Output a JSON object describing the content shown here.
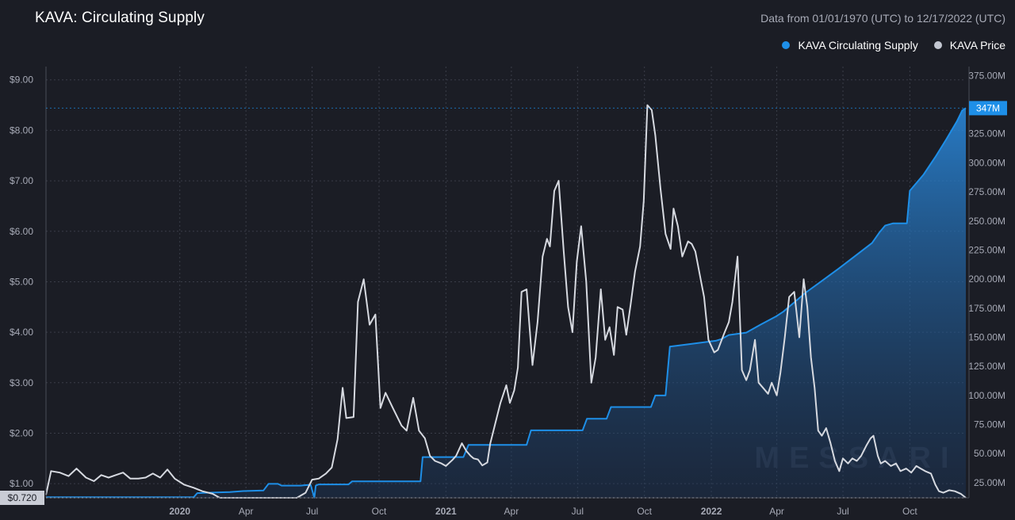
{
  "header": {
    "title": "KAVA: Circulating Supply",
    "date_range": "Data from 01/01/1970 (UTC) to 12/17/2022 (UTC)"
  },
  "legend": {
    "items": [
      {
        "label": "KAVA Circulating Supply",
        "color": "#1e8fe8"
      },
      {
        "label": "KAVA Price",
        "color": "#c3c7d1"
      }
    ]
  },
  "watermark": "MESSARI",
  "colors": {
    "background": "#1b1d25",
    "supply": "#1e8fe8",
    "price": "#d6d9e0",
    "grid": "#3a3d48",
    "axis_text": "#a7aab6"
  },
  "chart_data": {
    "type": "line",
    "title": "KAVA: Circulating Supply",
    "x_range": [
      "2019-07-01",
      "2022-12-17"
    ],
    "x_ticks": [
      {
        "label": "2020",
        "date": "2020-01-01"
      },
      {
        "label": "Apr",
        "date": "2020-04-01"
      },
      {
        "label": "Jul",
        "date": "2020-07-01"
      },
      {
        "label": "Oct",
        "date": "2020-10-01"
      },
      {
        "label": "2021",
        "date": "2021-01-01"
      },
      {
        "label": "Apr",
        "date": "2021-04-01"
      },
      {
        "label": "Jul",
        "date": "2021-07-01"
      },
      {
        "label": "Oct",
        "date": "2021-10-01"
      },
      {
        "label": "2022",
        "date": "2022-01-01"
      },
      {
        "label": "Apr",
        "date": "2022-04-01"
      },
      {
        "label": "Jul",
        "date": "2022-07-01"
      },
      {
        "label": "Oct",
        "date": "2022-10-01"
      }
    ],
    "left_axis": {
      "ylim": [
        0.72,
        9.2
      ],
      "ticks": [
        1,
        2,
        3,
        4,
        5,
        6,
        7,
        8,
        9
      ],
      "tick_labels": [
        "$1.00",
        "$2.00",
        "$3.00",
        "$4.00",
        "$5.00",
        "$6.00",
        "$7.00",
        "$8.00",
        "$9.00"
      ]
    },
    "right_axis": {
      "ylim": [
        12,
        380
      ],
      "ticks": [
        25,
        50,
        75,
        100,
        125,
        150,
        175,
        200,
        225,
        250,
        275,
        300,
        325,
        350,
        375
      ],
      "tick_labels": [
        "25.00M",
        "50.00M",
        "75.00M",
        "100.00M",
        "125.00M",
        "150.00M",
        "175.00M",
        "200.00M",
        "225.00M",
        "250.00M",
        "275.00M",
        "300.00M",
        "325.00M",
        "",
        "375.00M"
      ]
    },
    "last_values": {
      "price": "$0.720",
      "supply": "347M"
    },
    "grid": true,
    "legend_position": "top-right",
    "series": [
      {
        "name": "KAVA Circulating Supply",
        "axis": "right",
        "type": "area",
        "points": [
          [
            "2019-07-01",
            12.5
          ],
          [
            "2019-09-01",
            12.5
          ],
          [
            "2019-11-01",
            12.5
          ],
          [
            "2020-01-07",
            12.5
          ],
          [
            "2020-01-20",
            12.5
          ],
          [
            "2020-01-25",
            16
          ],
          [
            "2020-02-15",
            16.5
          ],
          [
            "2020-03-10",
            17
          ],
          [
            "2020-03-28",
            17.8
          ],
          [
            "2020-04-25",
            18.3
          ],
          [
            "2020-05-02",
            24
          ],
          [
            "2020-05-15",
            24
          ],
          [
            "2020-05-20",
            22.5
          ],
          [
            "2020-06-15",
            22.5
          ],
          [
            "2020-06-24",
            23
          ],
          [
            "2020-06-29",
            23
          ],
          [
            "2020-07-04",
            0
          ],
          [
            "2020-07-06",
            22.5
          ],
          [
            "2020-07-10",
            23.5
          ],
          [
            "2020-08-20",
            23.5
          ],
          [
            "2020-08-25",
            26.2
          ],
          [
            "2020-10-10",
            26.2
          ],
          [
            "2020-11-27",
            26.2
          ],
          [
            "2020-11-30",
            47
          ],
          [
            "2021-01-25",
            47
          ],
          [
            "2021-02-01",
            57.5
          ],
          [
            "2021-04-22",
            57.5
          ],
          [
            "2021-04-28",
            70
          ],
          [
            "2021-07-08",
            70
          ],
          [
            "2021-07-14",
            80
          ],
          [
            "2021-08-10",
            80
          ],
          [
            "2021-08-16",
            90
          ],
          [
            "2021-10-10",
            90
          ],
          [
            "2021-10-16",
            100
          ],
          [
            "2021-10-30",
            100
          ],
          [
            "2021-11-05",
            142
          ],
          [
            "2021-12-01",
            144
          ],
          [
            "2022-01-07",
            147
          ],
          [
            "2022-01-15",
            148.5
          ],
          [
            "2022-01-25",
            152
          ],
          [
            "2022-02-18",
            154
          ],
          [
            "2022-03-10",
            161
          ],
          [
            "2022-03-31",
            168
          ],
          [
            "2022-04-10",
            172
          ],
          [
            "2022-04-25",
            180
          ],
          [
            "2022-05-10",
            188
          ],
          [
            "2022-06-01",
            198
          ],
          [
            "2022-06-25",
            209
          ],
          [
            "2022-07-20",
            221
          ],
          [
            "2022-08-10",
            231
          ],
          [
            "2022-08-20",
            240
          ],
          [
            "2022-08-28",
            246
          ],
          [
            "2022-09-08",
            248
          ],
          [
            "2022-09-27",
            248
          ],
          [
            "2022-10-01",
            276
          ],
          [
            "2022-10-20",
            290
          ],
          [
            "2022-11-05",
            305
          ],
          [
            "2022-11-20",
            320
          ],
          [
            "2022-12-05",
            336
          ],
          [
            "2022-12-12",
            345
          ],
          [
            "2022-12-17",
            347
          ]
        ]
      },
      {
        "name": "KAVA Price",
        "axis": "left",
        "type": "line",
        "points": [
          [
            "2019-07-01",
            0.78
          ],
          [
            "2019-07-08",
            1.25
          ],
          [
            "2019-07-20",
            1.22
          ],
          [
            "2019-08-01",
            1.15
          ],
          [
            "2019-08-12",
            1.3
          ],
          [
            "2019-08-25",
            1.12
          ],
          [
            "2019-09-05",
            1.05
          ],
          [
            "2019-09-15",
            1.17
          ],
          [
            "2019-09-25",
            1.12
          ],
          [
            "2019-10-05",
            1.17
          ],
          [
            "2019-10-15",
            1.22
          ],
          [
            "2019-10-25",
            1.1
          ],
          [
            "2019-11-05",
            1.1
          ],
          [
            "2019-11-15",
            1.12
          ],
          [
            "2019-11-25",
            1.2
          ],
          [
            "2019-12-05",
            1.12
          ],
          [
            "2019-12-15",
            1.28
          ],
          [
            "2019-12-25",
            1.1
          ],
          [
            "2020-01-07",
            0.98
          ],
          [
            "2020-01-20",
            0.92
          ],
          [
            "2020-02-01",
            0.85
          ],
          [
            "2020-02-15",
            0.8
          ],
          [
            "2020-02-25",
            0.5
          ],
          [
            "2020-03-08",
            0.48
          ],
          [
            "2020-03-15",
            0.52
          ],
          [
            "2020-03-25",
            0.63
          ],
          [
            "2020-04-08",
            0.6
          ],
          [
            "2020-04-20",
            0.65
          ],
          [
            "2020-05-01",
            0.72
          ],
          [
            "2020-05-15",
            0.62
          ],
          [
            "2020-05-28",
            0.55
          ],
          [
            "2020-06-10",
            0.68
          ],
          [
            "2020-06-22",
            0.82
          ],
          [
            "2020-07-01",
            1.08
          ],
          [
            "2020-07-10",
            1.1
          ],
          [
            "2020-07-20",
            1.2
          ],
          [
            "2020-07-28",
            1.32
          ],
          [
            "2020-08-05",
            1.88
          ],
          [
            "2020-08-12",
            2.9
          ],
          [
            "2020-08-17",
            2.3
          ],
          [
            "2020-08-27",
            2.32
          ],
          [
            "2020-09-02",
            4.6
          ],
          [
            "2020-09-10",
            5.05
          ],
          [
            "2020-09-18",
            4.15
          ],
          [
            "2020-09-26",
            4.35
          ],
          [
            "2020-10-03",
            2.5
          ],
          [
            "2020-10-10",
            2.8
          ],
          [
            "2020-10-20",
            2.5
          ],
          [
            "2020-11-01",
            2.15
          ],
          [
            "2020-11-08",
            2.05
          ],
          [
            "2020-11-17",
            2.7
          ],
          [
            "2020-11-25",
            2.05
          ],
          [
            "2020-12-03",
            1.9
          ],
          [
            "2020-12-10",
            1.55
          ],
          [
            "2020-12-17",
            1.45
          ],
          [
            "2020-12-26",
            1.4
          ],
          [
            "2021-01-01",
            1.35
          ],
          [
            "2021-01-10",
            1.47
          ],
          [
            "2021-01-15",
            1.55
          ],
          [
            "2021-01-23",
            1.8
          ],
          [
            "2021-01-29",
            1.65
          ],
          [
            "2021-02-04",
            1.55
          ],
          [
            "2021-02-08",
            1.5
          ],
          [
            "2021-02-14",
            1.48
          ],
          [
            "2021-02-20",
            1.36
          ],
          [
            "2021-02-27",
            1.42
          ],
          [
            "2021-03-03",
            1.8
          ],
          [
            "2021-03-10",
            2.2
          ],
          [
            "2021-03-17",
            2.6
          ],
          [
            "2021-03-25",
            2.95
          ],
          [
            "2021-03-30",
            2.6
          ],
          [
            "2021-04-05",
            2.85
          ],
          [
            "2021-04-10",
            3.3
          ],
          [
            "2021-04-15",
            4.8
          ],
          [
            "2021-04-22",
            4.85
          ],
          [
            "2021-04-30",
            3.35
          ],
          [
            "2021-05-07",
            4.2
          ],
          [
            "2021-05-14",
            5.5
          ],
          [
            "2021-05-20",
            5.85
          ],
          [
            "2021-05-24",
            5.7
          ],
          [
            "2021-05-30",
            6.8
          ],
          [
            "2021-06-05",
            7.0
          ],
          [
            "2021-06-12",
            5.6
          ],
          [
            "2021-06-18",
            4.5
          ],
          [
            "2021-06-24",
            4.0
          ],
          [
            "2021-06-30",
            5.4
          ],
          [
            "2021-07-06",
            6.1
          ],
          [
            "2021-07-13",
            5.0
          ],
          [
            "2021-07-20",
            3.0
          ],
          [
            "2021-07-26",
            3.5
          ],
          [
            "2021-08-02",
            4.85
          ],
          [
            "2021-08-08",
            3.85
          ],
          [
            "2021-08-14",
            4.1
          ],
          [
            "2021-08-20",
            3.55
          ],
          [
            "2021-08-25",
            4.5
          ],
          [
            "2021-09-01",
            4.45
          ],
          [
            "2021-09-06",
            3.95
          ],
          [
            "2021-09-12",
            4.55
          ],
          [
            "2021-09-18",
            5.2
          ],
          [
            "2021-09-25",
            5.7
          ],
          [
            "2021-09-30",
            6.6
          ],
          [
            "2021-10-05",
            8.5
          ],
          [
            "2021-10-11",
            8.4
          ],
          [
            "2021-10-16",
            7.9
          ],
          [
            "2021-10-23",
            6.85
          ],
          [
            "2021-10-30",
            5.95
          ],
          [
            "2021-11-06",
            5.65
          ],
          [
            "2021-11-10",
            6.45
          ],
          [
            "2021-11-16",
            6.1
          ],
          [
            "2021-11-22",
            5.5
          ],
          [
            "2021-11-30",
            5.8
          ],
          [
            "2021-12-05",
            5.75
          ],
          [
            "2021-12-10",
            5.6
          ],
          [
            "2021-12-18",
            5.0
          ],
          [
            "2021-12-22",
            4.7
          ],
          [
            "2021-12-28",
            3.85
          ],
          [
            "2022-01-05",
            3.6
          ],
          [
            "2022-01-10",
            3.65
          ],
          [
            "2022-01-18",
            3.95
          ],
          [
            "2022-01-25",
            4.2
          ],
          [
            "2022-01-30",
            4.6
          ],
          [
            "2022-02-06",
            5.5
          ],
          [
            "2022-02-12",
            3.25
          ],
          [
            "2022-02-18",
            3.05
          ],
          [
            "2022-02-23",
            3.25
          ],
          [
            "2022-03-02",
            3.85
          ],
          [
            "2022-03-07",
            3.0
          ],
          [
            "2022-03-13",
            2.9
          ],
          [
            "2022-03-20",
            2.78
          ],
          [
            "2022-03-25",
            3.0
          ],
          [
            "2022-04-01",
            2.75
          ],
          [
            "2022-04-06",
            3.2
          ],
          [
            "2022-04-12",
            3.9
          ],
          [
            "2022-04-18",
            4.7
          ],
          [
            "2022-04-25",
            4.8
          ],
          [
            "2022-05-02",
            3.9
          ],
          [
            "2022-05-08",
            5.05
          ],
          [
            "2022-05-13",
            4.5
          ],
          [
            "2022-05-18",
            3.5
          ],
          [
            "2022-05-23",
            2.9
          ],
          [
            "2022-05-28",
            2.05
          ],
          [
            "2022-06-02",
            1.95
          ],
          [
            "2022-06-08",
            2.1
          ],
          [
            "2022-06-14",
            1.8
          ],
          [
            "2022-06-20",
            1.45
          ],
          [
            "2022-06-26",
            1.25
          ],
          [
            "2022-07-01",
            1.5
          ],
          [
            "2022-07-08",
            1.4
          ],
          [
            "2022-07-14",
            1.5
          ],
          [
            "2022-07-20",
            1.45
          ],
          [
            "2022-07-26",
            1.55
          ],
          [
            "2022-08-02",
            1.75
          ],
          [
            "2022-08-08",
            1.9
          ],
          [
            "2022-08-12",
            1.95
          ],
          [
            "2022-08-18",
            1.55
          ],
          [
            "2022-08-22",
            1.4
          ],
          [
            "2022-08-28",
            1.45
          ],
          [
            "2022-09-05",
            1.35
          ],
          [
            "2022-09-12",
            1.4
          ],
          [
            "2022-09-18",
            1.25
          ],
          [
            "2022-09-26",
            1.3
          ],
          [
            "2022-10-03",
            1.22
          ],
          [
            "2022-10-10",
            1.35
          ],
          [
            "2022-10-16",
            1.3
          ],
          [
            "2022-10-22",
            1.25
          ],
          [
            "2022-10-30",
            1.2
          ],
          [
            "2022-11-05",
            0.98
          ],
          [
            "2022-11-10",
            0.85
          ],
          [
            "2022-11-16",
            0.82
          ],
          [
            "2022-11-24",
            0.87
          ],
          [
            "2022-12-02",
            0.85
          ],
          [
            "2022-12-10",
            0.8
          ],
          [
            "2022-12-17",
            0.72
          ]
        ]
      }
    ]
  }
}
